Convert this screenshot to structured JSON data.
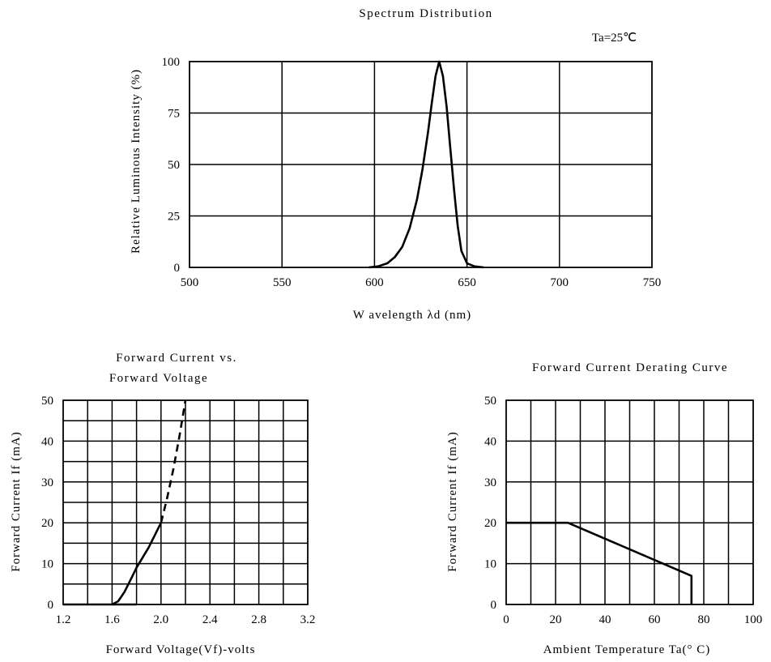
{
  "chart_data": [
    {
      "type": "line",
      "title": "Spectrum   Distribution",
      "annotation": "Ta=25℃",
      "xlabel": "W avelength    λd (nm)",
      "ylabel": "Relative   Luminous   Intensity   (%)",
      "xlim": [
        500,
        750
      ],
      "ylim": [
        0,
        100
      ],
      "xticks": [
        "500",
        "550",
        "600",
        "650",
        "700",
        "750"
      ],
      "yticks": [
        "0",
        "25",
        "50",
        "75",
        "100"
      ],
      "grid": true,
      "series": [
        {
          "x": [
            597,
            602,
            607,
            611,
            615,
            619,
            623,
            626,
            629,
            631,
            633,
            635,
            637,
            639,
            641,
            643,
            645,
            647,
            650,
            654,
            659
          ],
          "y": [
            0,
            0.5,
            2,
            5,
            10,
            19,
            33,
            48,
            66,
            80,
            93,
            100,
            93,
            78,
            58,
            38,
            20,
            8,
            2,
            0.5,
            0
          ],
          "style": "solid"
        }
      ]
    },
    {
      "type": "line",
      "title_lines": [
        "Forward   Current   vs.",
        "Forward   Voltage"
      ],
      "xlabel": "Forward Voltage(Vf)-volts",
      "ylabel": "Forward   Current   If  (mA)",
      "xlim": [
        1.2,
        3.2
      ],
      "ylim": [
        0,
        50
      ],
      "xticks": [
        "1.2",
        "1.6",
        "2.0",
        "2.4",
        "2.8",
        "3.2"
      ],
      "yticks": [
        "0",
        "10",
        "20",
        "30",
        "40",
        "50"
      ],
      "grid": true,
      "series": [
        {
          "x": [
            1.2,
            1.6,
            1.65,
            1.7,
            1.75,
            1.8,
            1.9,
            2.0
          ],
          "y": [
            0,
            0,
            0.8,
            3,
            6,
            9,
            14,
            20
          ],
          "style": "solid"
        },
        {
          "x": [
            1.6,
            1.8
          ],
          "y": [
            0,
            0
          ],
          "style": "solid"
        },
        {
          "x": [
            2.0,
            2.05,
            2.1,
            2.15,
            2.2
          ],
          "y": [
            20,
            26,
            33,
            41,
            50
          ],
          "style": "dashed"
        }
      ]
    },
    {
      "type": "line",
      "title": "Forward  Current  Derating  Curve",
      "xlabel": "Ambient  Temperature  Ta(° C)",
      "ylabel": "Forward   Current   If  (mA)",
      "xlim": [
        0,
        100
      ],
      "ylim": [
        0,
        50
      ],
      "xticks": [
        "0",
        "20",
        "40",
        "60",
        "80",
        "100"
      ],
      "yticks": [
        "0",
        "10",
        "20",
        "30",
        "40",
        "50"
      ],
      "grid": true,
      "series": [
        {
          "x": [
            0,
            25,
            75,
            75
          ],
          "y": [
            20,
            20,
            7,
            0
          ],
          "style": "solid"
        }
      ]
    }
  ]
}
